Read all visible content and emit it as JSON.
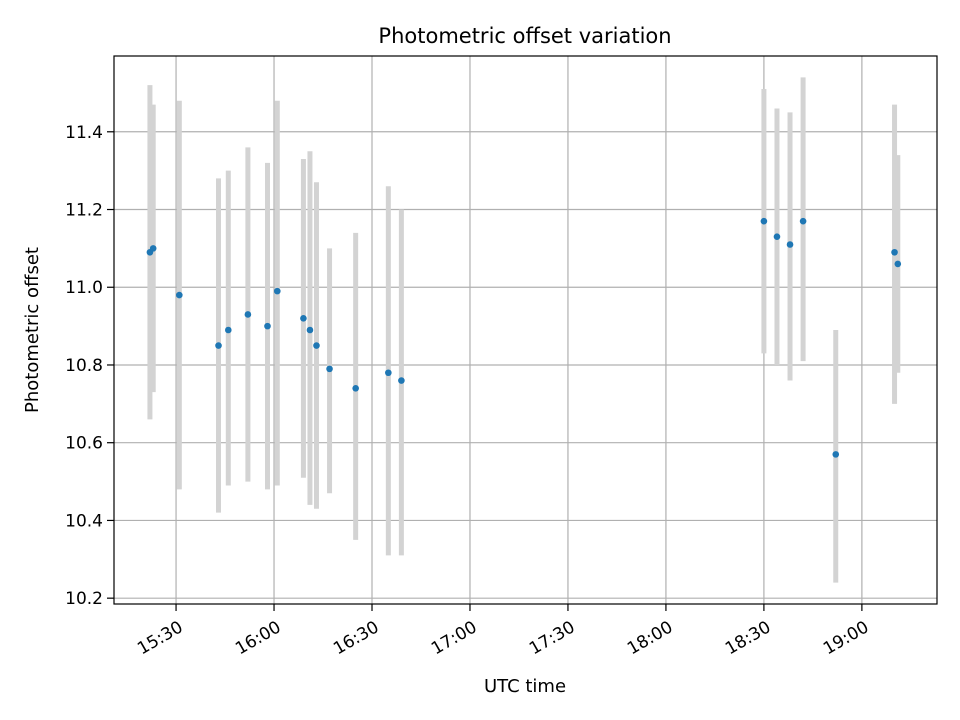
{
  "chart_data": {
    "type": "scatter",
    "title": "Photometric offset variation",
    "xlabel": "UTC time",
    "ylabel": "Photometric offset",
    "x_range": [
      "15:11",
      "19:23"
    ],
    "ylim": [
      10.185,
      11.595
    ],
    "x_ticks": [
      "15:30",
      "16:00",
      "16:30",
      "17:00",
      "17:30",
      "18:00",
      "18:30",
      "19:00"
    ],
    "y_ticks": [
      "10.2",
      "10.4",
      "10.6",
      "10.8",
      "11.0",
      "11.2",
      "11.4"
    ],
    "grid": true,
    "colors": {
      "points": "#1f77b4",
      "errorbars": "#d3d3d3",
      "grid": "#b0b0b0"
    },
    "series": [
      {
        "points": [
          {
            "t": "15:22",
            "y": 11.09,
            "low": 10.66,
            "high": 11.52
          },
          {
            "t": "15:23",
            "y": 11.1,
            "low": 10.73,
            "high": 11.47
          },
          {
            "t": "15:31",
            "y": 10.98,
            "low": 10.48,
            "high": 11.48
          },
          {
            "t": "15:43",
            "y": 10.85,
            "low": 10.42,
            "high": 11.28
          },
          {
            "t": "15:46",
            "y": 10.89,
            "low": 10.49,
            "high": 11.3
          },
          {
            "t": "15:52",
            "y": 10.93,
            "low": 10.5,
            "high": 11.36
          },
          {
            "t": "15:58",
            "y": 10.9,
            "low": 10.48,
            "high": 11.32
          },
          {
            "t": "16:01",
            "y": 10.99,
            "low": 10.49,
            "high": 11.48
          },
          {
            "t": "16:09",
            "y": 10.92,
            "low": 10.51,
            "high": 11.33
          },
          {
            "t": "16:11",
            "y": 10.89,
            "low": 10.44,
            "high": 11.35
          },
          {
            "t": "16:13",
            "y": 10.85,
            "low": 10.43,
            "high": 11.27
          },
          {
            "t": "16:17",
            "y": 10.79,
            "low": 10.47,
            "high": 11.1
          },
          {
            "t": "16:25",
            "y": 10.74,
            "low": 10.35,
            "high": 11.14
          },
          {
            "t": "16:35",
            "y": 10.78,
            "low": 10.31,
            "high": 11.26
          },
          {
            "t": "16:39",
            "y": 10.76,
            "low": 10.31,
            "high": 11.2
          },
          {
            "t": "18:30",
            "y": 11.17,
            "low": 10.83,
            "high": 11.51
          },
          {
            "t": "18:34",
            "y": 11.13,
            "low": 10.8,
            "high": 11.46
          },
          {
            "t": "18:38",
            "y": 11.11,
            "low": 10.76,
            "high": 11.45
          },
          {
            "t": "18:42",
            "y": 11.17,
            "low": 10.81,
            "high": 11.54
          },
          {
            "t": "18:52",
            "y": 10.57,
            "low": 10.24,
            "high": 10.89
          },
          {
            "t": "19:10",
            "y": 11.09,
            "low": 10.7,
            "high": 11.47
          },
          {
            "t": "19:11",
            "y": 11.06,
            "low": 10.78,
            "high": 11.34
          }
        ]
      }
    ]
  }
}
